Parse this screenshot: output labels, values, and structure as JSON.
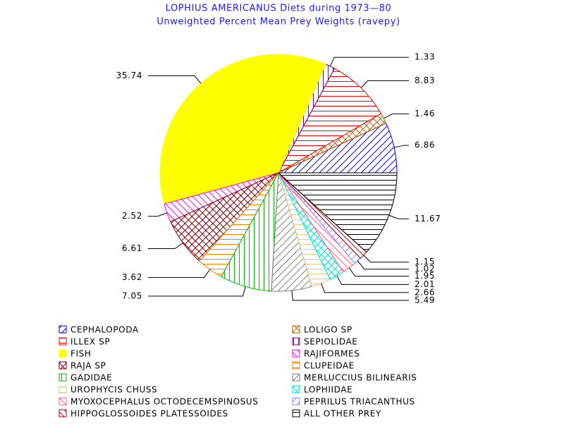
{
  "chart_data": {
    "type": "pie",
    "title": "LOPHIUS AMERICANUS Diets during 1973—80",
    "subtitle": "Unweighted Percent Mean Prey Weights (ravepy)",
    "categories": [
      "CEPHALOPODA",
      "LOLIGO SP",
      "ILLEX SP",
      "SEPIOLIDAE",
      "FISH",
      "RAJIFORMES",
      "RAJA SP",
      "CLUPEIDAE",
      "GADIDAE",
      "MERLUCCIUS BILINEARIS",
      "UROPHYCIS CHUSS",
      "LOPHIIDAE",
      "MYOXOCEPHALUS OCTODECEMSPINOSUS",
      "PEPRILUS TRIACANTHUS",
      "HIPPOGLOSSOIDES PLATESSOIDES",
      "ALL OTHER PREY"
    ],
    "values": [
      6.86,
      1.46,
      8.83,
      1.33,
      35.74,
      2.52,
      6.61,
      3.62,
      7.05,
      5.49,
      2.66,
      2.01,
      1.95,
      1.02,
      1.15,
      11.67
    ],
    "colors": [
      "#0000ff",
      "#c06000",
      "#ff0000",
      "#800080",
      "#ffff00",
      "#ff00ff",
      "#800000",
      "#ff8000",
      "#00c000",
      "#808080",
      "#e8c888",
      "#00e0e0",
      "#ff6080",
      "#9090ff",
      "#c00000",
      "#000000"
    ],
    "hatches": [
      "fwd",
      "cross",
      "horiz",
      "vert",
      "solid",
      "back",
      "cross",
      "horiz",
      "vert",
      "fwd",
      "horiz",
      "cross",
      "back",
      "fwd",
      "back",
      "horiz"
    ],
    "legend": "bottom"
  }
}
